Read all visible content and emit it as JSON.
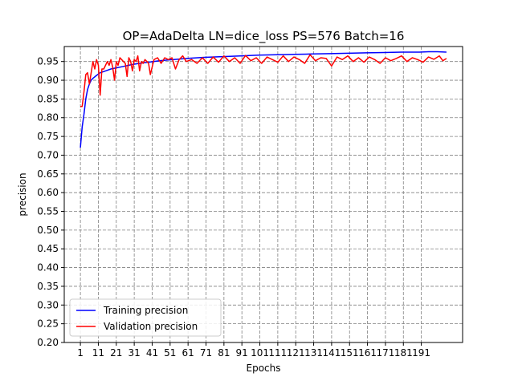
{
  "chart_data": {
    "type": "line",
    "title": "OP=AdaDelta LN=dice_loss PS=576 Batch=16",
    "xlabel": "Epochs",
    "ylabel": "precision",
    "xlim": [
      -8,
      214
    ],
    "ylim": [
      0.2,
      0.99
    ],
    "x_ticks": [
      1,
      11,
      21,
      31,
      41,
      51,
      61,
      71,
      81,
      91,
      101,
      111,
      121,
      131,
      141,
      151,
      161,
      171,
      181,
      191
    ],
    "x_tick_labels": [
      "1",
      "11",
      "21",
      "31",
      "41",
      "51",
      "61",
      "71",
      "81",
      "91",
      "101",
      "111",
      "121",
      "131",
      "141",
      "151",
      "161",
      "171",
      "181",
      "191"
    ],
    "y_ticks": [
      0.2,
      0.25,
      0.3,
      0.35,
      0.4,
      0.45,
      0.5,
      0.55,
      0.6,
      0.65,
      0.7,
      0.75,
      0.8,
      0.85,
      0.9,
      0.95
    ],
    "y_tick_labels": [
      "0.20",
      "0.25",
      "0.30",
      "0.35",
      "0.40",
      "0.45",
      "0.50",
      "0.55",
      "0.60",
      "0.65",
      "0.70",
      "0.75",
      "0.80",
      "0.85",
      "0.90",
      "0.95"
    ],
    "grid": true,
    "grid_color": "#808080",
    "legend_position": "lower-left",
    "series": [
      {
        "name": "Training precision",
        "color": "#0000ff",
        "x": [
          1,
          2,
          3,
          4,
          5,
          6,
          7,
          8,
          10,
          12,
          15,
          18,
          21,
          25,
          30,
          35,
          40,
          45,
          50,
          55,
          60,
          70,
          80,
          90,
          100,
          110,
          120,
          130,
          140,
          150,
          160,
          170,
          180,
          190,
          195,
          200,
          205
        ],
        "values": [
          0.72,
          0.775,
          0.81,
          0.85,
          0.875,
          0.89,
          0.9,
          0.905,
          0.913,
          0.92,
          0.925,
          0.93,
          0.933,
          0.937,
          0.942,
          0.946,
          0.949,
          0.952,
          0.954,
          0.956,
          0.958,
          0.961,
          0.963,
          0.965,
          0.967,
          0.968,
          0.969,
          0.97,
          0.971,
          0.972,
          0.973,
          0.974,
          0.975,
          0.975,
          0.976,
          0.976,
          0.975
        ]
      },
      {
        "name": "Validation precision",
        "color": "#ff0000",
        "x": [
          1,
          2,
          3,
          4,
          5,
          6,
          7,
          8,
          9,
          10,
          11,
          12,
          13,
          14,
          15,
          16,
          17,
          18,
          19,
          20,
          21,
          22,
          23,
          24,
          25,
          26,
          27,
          28,
          29,
          30,
          31,
          32,
          33,
          34,
          35,
          36,
          37,
          38,
          39,
          40,
          42,
          44,
          46,
          48,
          50,
          52,
          54,
          56,
          58,
          60,
          63,
          66,
          69,
          72,
          75,
          78,
          81,
          84,
          87,
          90,
          93,
          96,
          99,
          102,
          105,
          108,
          111,
          114,
          117,
          120,
          123,
          126,
          129,
          132,
          135,
          138,
          141,
          144,
          147,
          150,
          153,
          156,
          159,
          162,
          165,
          168,
          171,
          174,
          177,
          180,
          183,
          186,
          189,
          192,
          195,
          198,
          201,
          203,
          205
        ],
        "values": [
          0.83,
          0.83,
          0.87,
          0.915,
          0.92,
          0.89,
          0.92,
          0.95,
          0.93,
          0.955,
          0.94,
          0.86,
          0.93,
          0.93,
          0.94,
          0.95,
          0.94,
          0.955,
          0.935,
          0.9,
          0.95,
          0.94,
          0.96,
          0.955,
          0.95,
          0.945,
          0.91,
          0.96,
          0.95,
          0.925,
          0.955,
          0.95,
          0.965,
          0.925,
          0.95,
          0.945,
          0.955,
          0.95,
          0.945,
          0.915,
          0.955,
          0.96,
          0.945,
          0.96,
          0.955,
          0.96,
          0.93,
          0.955,
          0.965,
          0.95,
          0.955,
          0.945,
          0.96,
          0.945,
          0.962,
          0.948,
          0.965,
          0.95,
          0.96,
          0.945,
          0.966,
          0.952,
          0.96,
          0.945,
          0.962,
          0.955,
          0.948,
          0.965,
          0.95,
          0.962,
          0.955,
          0.945,
          0.968,
          0.952,
          0.96,
          0.958,
          0.938,
          0.962,
          0.955,
          0.965,
          0.95,
          0.96,
          0.948,
          0.962,
          0.955,
          0.945,
          0.96,
          0.952,
          0.958,
          0.965,
          0.95,
          0.96,
          0.955,
          0.948,
          0.962,
          0.956,
          0.965,
          0.952,
          0.958
        ]
      }
    ]
  }
}
